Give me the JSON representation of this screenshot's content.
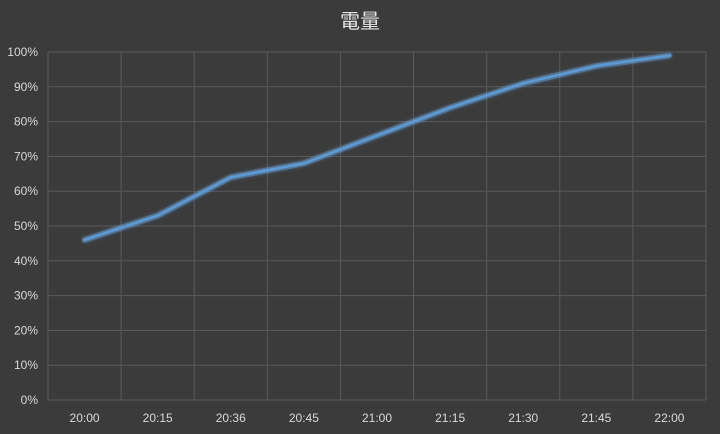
{
  "chart_data": {
    "type": "line",
    "title": "電量",
    "xlabel": "",
    "ylabel": "",
    "categories": [
      "20:00",
      "20:15",
      "20:36",
      "20:45",
      "21:00",
      "21:15",
      "21:30",
      "21:45",
      "22:00"
    ],
    "series": [
      {
        "values": [
          46,
          53,
          64,
          68,
          76,
          84,
          91,
          96,
          99
        ]
      }
    ],
    "ylim": [
      0,
      100
    ],
    "yticks": [
      "0%",
      "10%",
      "20%",
      "30%",
      "40%",
      "50%",
      "60%",
      "70%",
      "80%",
      "90%",
      "100%"
    ],
    "grid": true,
    "legend": "none",
    "colors": {
      "line": "#5b9bd5",
      "glow": "#7fb2e6",
      "background": "#3b3b3b",
      "grid": "#5a5a5a",
      "text": "#d9d9d9"
    }
  }
}
